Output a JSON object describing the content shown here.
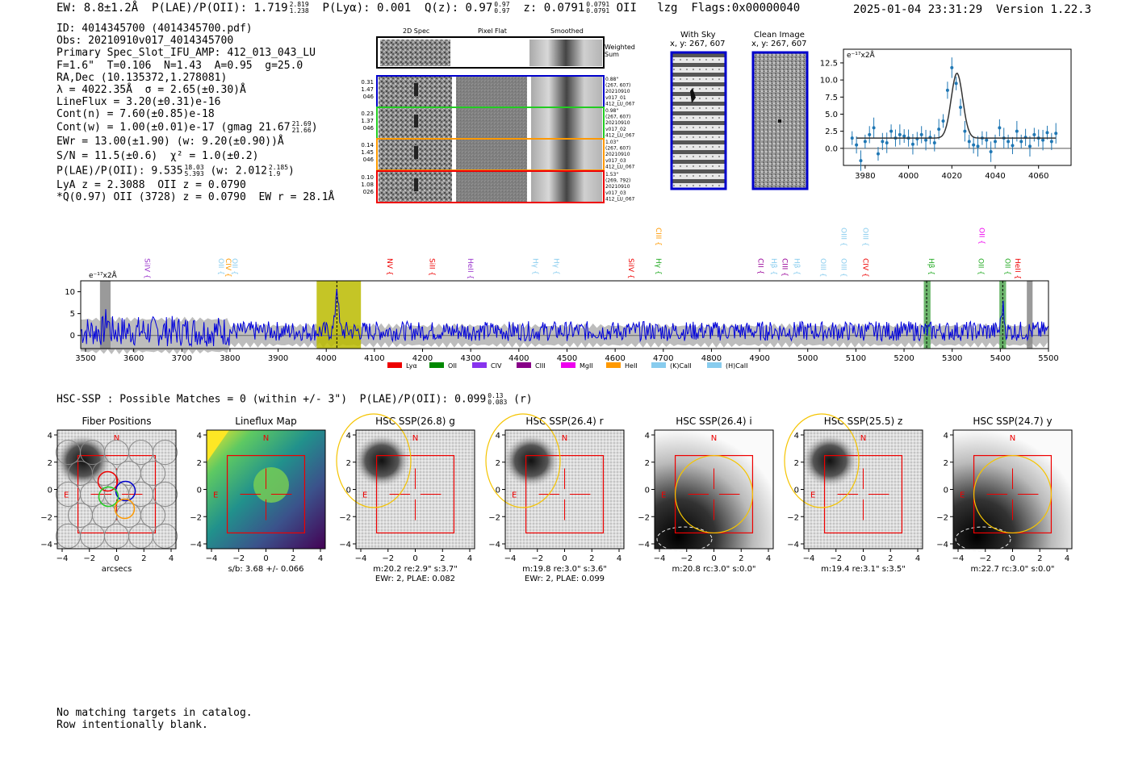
{
  "header": {
    "ew_label": "EW: 8.8±1.2Å",
    "plae_label": "P(LAE)/P(OII): 1.719",
    "plae_hi": "2.819",
    "plae_lo": "1.238",
    "plya_label": "P(Lyα): 0.001",
    "qz_label": "Q(z): 0.97",
    "qz_hi": "0.97",
    "qz_lo": "0.97",
    "z_label": "z: 0.0791",
    "z_hi": "0.0791",
    "z_lo": "0.0791",
    "z_line": "OII",
    "code": "lzg",
    "flags": "Flags:0x00000040",
    "timestamp": "2025-01-04 23:31:29",
    "version": "Version 1.22.3"
  },
  "info": {
    "id": "ID: 4014345700 (4014345700.pdf)",
    "obs": "Obs: 20210910v017_4014345700",
    "primary": "Primary Spec_Slot_IFU_AMP: 412_013_043_LU",
    "params": "F=1.6\"  T=0.106  N=1.43  A=0.95  g=25.0",
    "radec": "RA,Dec (10.135372,1.278081)",
    "lambda": "λ = 4022.35Å  σ = 2.65(±0.30)Å",
    "lineflux": "LineFlux = 3.20(±0.31)e-16",
    "contn": "Cont(n) = 7.60(±0.85)e-18",
    "contw": "Cont(w) = 1.00(±0.01)e-17 (gmag 21.67",
    "contw_hi": "21.69",
    "contw_lo": "21.66",
    "contw_end": ")",
    "ewr": "EWr = 13.00(±1.90) (w: 9.20(±0.90))Å",
    "sn": "S/N = 11.5(±0.6)  χ² = 1.0(±0.2)",
    "plae": "P(LAE)/P(OII): 9.535",
    "plae_hi": "18.03",
    "plae_lo": "5.393",
    "plae_w": "(w: 2.012",
    "plae_w_hi": "2.185",
    "plae_w_lo": "1.9",
    "plae_end": ")",
    "lya": "LyA z = 2.3088  OII z = 0.0790",
    "q": "*Q(0.97) OII (3728) z = 0.0790  EW r = 28.1Å"
  },
  "cutouts": {
    "col_titles": [
      "2D Spec",
      "Pixel Flat",
      "Smoothed"
    ],
    "weighted_sum": "Weighted Sum",
    "rows": [
      {
        "left": [
          "0.31",
          "1.47",
          "046"
        ],
        "right": [
          "0.88\"",
          "(267, 607)",
          "20210910",
          "v017_01",
          "412_LU_067"
        ],
        "color": "#0000cc"
      },
      {
        "left": [
          "0.23",
          "1.37",
          "046"
        ],
        "right": [
          "0.98\"",
          "(267, 607)",
          "20210910",
          "v017_02",
          "412_LU_067"
        ],
        "color": "#22cc22"
      },
      {
        "left": [
          "0.14",
          "1.45",
          "046"
        ],
        "right": [
          "1.03\"",
          "(267, 607)",
          "20210910",
          "v017_03",
          "412_LU_067"
        ],
        "color": "#ff9900"
      },
      {
        "left": [
          "0.10",
          "1.08",
          "026"
        ],
        "right": [
          "1.53\"",
          "(269, 792)",
          "20210910",
          "v017_03",
          "412_LU_067"
        ],
        "color": "#ee0000"
      }
    ],
    "with_sky_title": "With Sky",
    "with_sky_xy": "x, y: 267, 607",
    "clean_title": "Clean Image",
    "clean_xy": "x, y: 267, 607"
  },
  "chart_data": [
    {
      "type": "scatter",
      "title": "",
      "ylabel": "e⁻¹⁷x2Å",
      "xlim": [
        3970,
        4075
      ],
      "ylim": [
        -2.5,
        14.5
      ],
      "xticks": [
        3980,
        4000,
        4020,
        4040,
        4060
      ],
      "yticks": [
        0.0,
        2.5,
        5.0,
        7.5,
        10.0,
        12.5
      ],
      "series": [
        {
          "type": "scatter",
          "color": "#1f77b4",
          "x": [
            3974,
            3976,
            3978,
            3980,
            3982,
            3984,
            3986,
            3988,
            3990,
            3992,
            3994,
            3996,
            3998,
            4000,
            4002,
            4004,
            4006,
            4008,
            4010,
            4012,
            4014,
            4016,
            4018,
            4020,
            4022,
            4024,
            4026,
            4028,
            4030,
            4032,
            4034,
            4036,
            4038,
            4040,
            4042,
            4044,
            4046,
            4048,
            4050,
            4052,
            4054,
            4056,
            4058,
            4060,
            4062,
            4064,
            4066,
            4068
          ],
          "y": [
            1.5,
            0.5,
            -1.8,
            1.0,
            2.0,
            3.0,
            -0.8,
            1.0,
            0.8,
            2.5,
            1.5,
            2.0,
            1.8,
            1.5,
            0.6,
            1.4,
            2.0,
            1.2,
            1.6,
            0.8,
            2.8,
            4.0,
            8.5,
            11.8,
            9.5,
            6.0,
            2.5,
            1.0,
            0.5,
            0.3,
            1.5,
            1.2,
            -0.5,
            1.0,
            3.0,
            1.5,
            1.0,
            0.4,
            2.5,
            1.0,
            1.6,
            0.3,
            2.0,
            1.5,
            1.2,
            2.3,
            1.0,
            2.2
          ]
        },
        {
          "type": "line",
          "color": "#333333",
          "name": "",
          "model": {
            "center": 4022.35,
            "sigma": 2.65,
            "amp": 9.5,
            "cont": 1.5
          }
        }
      ]
    },
    {
      "type": "line",
      "title": "",
      "ylabel": "e⁻¹⁷x2Å",
      "xlim": [
        3490,
        5500
      ],
      "ylim": [
        -3,
        12.5
      ],
      "xticks": [
        3500,
        3600,
        3700,
        3800,
        3900,
        4000,
        4100,
        4200,
        4300,
        4400,
        4500,
        4600,
        4700,
        4800,
        4900,
        5000,
        5100,
        5200,
        5300,
        5400,
        5500
      ],
      "yticks": [
        0,
        5,
        10
      ],
      "emission_peaks": [
        {
          "x": 4022,
          "y": 11.5
        },
        {
          "x": 5405,
          "y": 6.5
        },
        {
          "x": 3545,
          "y": 4.0
        }
      ],
      "highlight_bands": [
        {
          "x0": 3980,
          "x1": 4072,
          "color": "#bbbb00"
        },
        {
          "x0": 5241,
          "x1": 5255,
          "color": "#55aa55"
        },
        {
          "x0": 5398,
          "x1": 5412,
          "color": "#55aa55"
        },
        {
          "x0": 3530,
          "x1": 3552,
          "color": "#888888"
        },
        {
          "x0": 5455,
          "x1": 5467,
          "color": "#888888"
        }
      ],
      "line_labels": [
        {
          "x": 3618,
          "label": "SiIV",
          "color": "#9933cc",
          "row": 1
        },
        {
          "x": 3772,
          "label": "OII",
          "color": "#88ccee",
          "row": 1
        },
        {
          "x": 3787,
          "label": "CIV",
          "color": "#ff9900",
          "row": 1
        },
        {
          "x": 3800,
          "label": "OII",
          "color": "#88ccee",
          "row": 1
        },
        {
          "x": 4122,
          "label": "NV",
          "color": "#ee0000",
          "row": 1
        },
        {
          "x": 4210,
          "label": "SiII",
          "color": "#ee0000",
          "row": 1
        },
        {
          "x": 4290,
          "label": "HeII",
          "color": "#9933cc",
          "row": 1
        },
        {
          "x": 4425,
          "label": "Hγ",
          "color": "#88ccee",
          "row": 1
        },
        {
          "x": 4468,
          "label": "Hγ",
          "color": "#88ccee",
          "row": 1
        },
        {
          "x": 4623,
          "label": "SiIV",
          "color": "#ee0000",
          "row": 1
        },
        {
          "x": 4680,
          "label": "Hγ",
          "color": "#22aa22",
          "row": 1
        },
        {
          "x": 4680,
          "label": "CIII",
          "color": "#ff9900",
          "row": 0
        },
        {
          "x": 4892,
          "label": "CII",
          "color": "#990099",
          "row": 1
        },
        {
          "x": 4920,
          "label": "Hβ",
          "color": "#88ccee",
          "row": 1
        },
        {
          "x": 4943,
          "label": "CIII",
          "color": "#990099",
          "row": 1
        },
        {
          "x": 4968,
          "label": "Hβ",
          "color": "#88ccee",
          "row": 1
        },
        {
          "x": 5022,
          "label": "OIII",
          "color": "#88ccee",
          "row": 1
        },
        {
          "x": 5065,
          "label": "OIII",
          "color": "#88ccee",
          "row": 1
        },
        {
          "x": 5065,
          "label": "OIII",
          "color": "#88ccee",
          "row": 0
        },
        {
          "x": 5110,
          "label": "CIV",
          "color": "#ee0000",
          "row": 1
        },
        {
          "x": 5110,
          "label": "OIII",
          "color": "#88ccee",
          "row": 0
        },
        {
          "x": 5247,
          "label": "Hβ",
          "color": "#22aa22",
          "row": 1
        },
        {
          "x": 5350,
          "label": "OII",
          "color": "#22aa22",
          "row": 1
        },
        {
          "x": 5352,
          "label": "OII",
          "color": "#ee00ee",
          "row": 0
        },
        {
          "x": 5405,
          "label": "OII",
          "color": "#22aa22",
          "row": 1
        },
        {
          "x": 5426,
          "label": "HeII",
          "color": "#ee0000",
          "row": 1
        }
      ],
      "legend": [
        {
          "label": "Lyα",
          "color": "#ee0000"
        },
        {
          "label": "OII",
          "color": "#008800"
        },
        {
          "label": "CIV",
          "color": "#8833ee"
        },
        {
          "label": "CIII",
          "color": "#880088"
        },
        {
          "label": "MgII",
          "color": "#ee00ee"
        },
        {
          "label": "HeII",
          "color": "#ff9900"
        },
        {
          "label": "(K)CaII",
          "color": "#88ccee"
        },
        {
          "label": "(H)CaII",
          "color": "#88ccee"
        }
      ]
    }
  ],
  "hsc": {
    "line": "HSC-SSP : Possible Matches = 0 (within +/- 3\")  P(LAE)/P(OII): 0.099",
    "hi": "0.13",
    "lo": "0.083",
    "band": "(r)"
  },
  "stamps": [
    {
      "title": "Fiber Positions",
      "sub1": "arcsecs",
      "sub2": "",
      "kind": "fiber"
    },
    {
      "title": "Lineflux Map",
      "sub1": "s/b: 3.68 +/- 0.066",
      "sub2": "",
      "kind": "flux"
    },
    {
      "title": "HSC SSP(26.8) g",
      "sub1": "m:20.2  re:2.9\"  s:3.7\"",
      "sub2": "EWr: 2, PLAE: 0.082",
      "kind": "gray"
    },
    {
      "title": "HSC SSP(26.4) r",
      "sub1": "m:19.8  re:3.0\"  s:3.6\"",
      "sub2": "EWr: 2, PLAE: 0.099",
      "kind": "gray"
    },
    {
      "title": "HSC SSP(26.4) i",
      "sub1": "m:20.8 rc:3.0\"  s:0.0\"",
      "sub2": "",
      "kind": "smooth"
    },
    {
      "title": "HSC SSP(25.5) z",
      "sub1": "m:19.4  re:3.1\"  s:3.5\"",
      "sub2": "",
      "kind": "gray"
    },
    {
      "title": "HSC SSP(24.7) y",
      "sub1": "m:22.7 rc:3.0\"  s:0.0\"",
      "sub2": "",
      "kind": "smooth"
    }
  ],
  "stamp_axes": {
    "ticks": [
      "−4",
      "−2",
      "0",
      "2",
      "4"
    ],
    "north": "N",
    "east": "E"
  },
  "footer": {
    "line1": "No matching targets in catalog.",
    "line2": "Row intentionally blank."
  }
}
